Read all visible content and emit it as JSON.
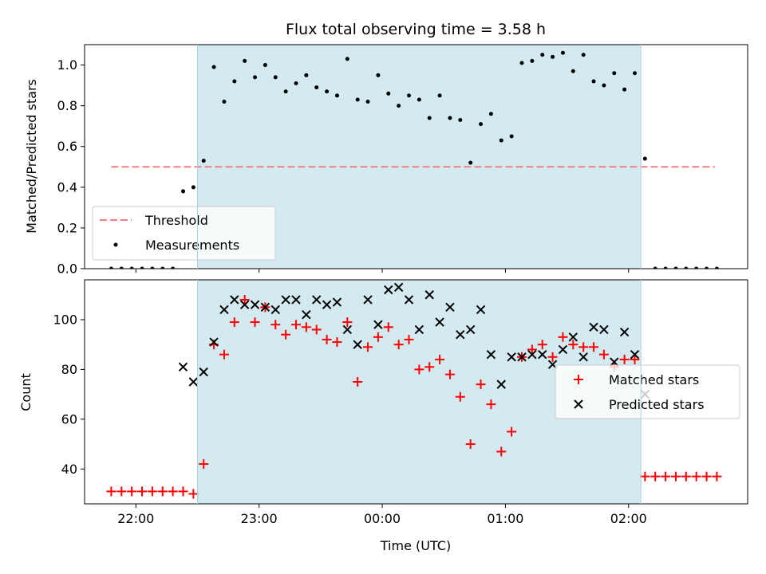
{
  "chart_data": [
    {
      "type": "scatter",
      "title": "Flux total observing time = 3.58 h",
      "xlabel": "",
      "ylabel": "Matched/Predicted stars",
      "ylim": [
        0,
        1.1
      ],
      "xlim": [
        "21:35",
        "02:58"
      ],
      "yticks": [
        "0.0",
        "0.2",
        "0.4",
        "0.6",
        "0.8",
        "1.0"
      ],
      "shaded_interval": [
        "22:30",
        "02:06"
      ],
      "shade_color": "#d3eaf1",
      "threshold": {
        "name": "Threshold",
        "value": 0.5,
        "x_range": [
          "21:48",
          "02:42"
        ],
        "color": "#f08080"
      },
      "series": [
        {
          "name": "Measurements",
          "color": "#000000",
          "x": [
            "21:48",
            "21:53",
            "21:58",
            "22:03",
            "22:08",
            "22:13",
            "22:18",
            "22:23",
            "22:28",
            "22:33",
            "22:38",
            "22:43",
            "22:48",
            "22:53",
            "22:58",
            "23:03",
            "23:08",
            "23:13",
            "23:18",
            "23:23",
            "23:28",
            "23:33",
            "23:38",
            "23:43",
            "23:48",
            "23:53",
            "23:58",
            "00:03",
            "00:08",
            "00:13",
            "00:18",
            "00:23",
            "00:28",
            "00:33",
            "00:38",
            "00:43",
            "00:48",
            "00:53",
            "00:58",
            "01:03",
            "01:08",
            "01:13",
            "01:18",
            "01:23",
            "01:28",
            "01:33",
            "01:38",
            "01:43",
            "01:48",
            "01:53",
            "01:58",
            "02:03",
            "02:08",
            "02:13",
            "02:18",
            "02:23",
            "02:28",
            "02:33",
            "02:38",
            "02:43"
          ],
          "y": [
            0,
            0,
            0,
            0,
            0,
            0,
            0,
            0.38,
            0.4,
            0.53,
            0.99,
            0.82,
            0.92,
            1.02,
            0.94,
            1.0,
            0.94,
            0.87,
            0.91,
            0.95,
            0.89,
            0.87,
            0.85,
            1.03,
            0.83,
            0.82,
            0.95,
            0.86,
            0.8,
            0.85,
            0.83,
            0.74,
            0.85,
            0.74,
            0.73,
            0.52,
            0.71,
            0.76,
            0.63,
            0.65,
            1.01,
            1.02,
            1.05,
            1.04,
            1.06,
            0.97,
            1.05,
            0.92,
            0.9,
            0.96,
            0.88,
            0.96,
            0.54,
            0,
            0,
            0,
            0,
            0,
            0,
            0
          ]
        }
      ],
      "legend": {
        "placement": "lower-left",
        "entries": [
          "Threshold",
          "Measurements"
        ]
      }
    },
    {
      "type": "scatter",
      "title": "",
      "xlabel": "Time (UTC)",
      "ylabel": "Count",
      "ylim": [
        26,
        116
      ],
      "xlim": [
        "21:35",
        "02:58"
      ],
      "yticks": [
        "40",
        "60",
        "80",
        "100"
      ],
      "xticks": [
        "22:00",
        "23:00",
        "00:00",
        "01:00",
        "02:00"
      ],
      "shaded_interval": [
        "22:30",
        "02:06"
      ],
      "shade_color": "#d3eaf1",
      "series": [
        {
          "name": "Matched stars",
          "marker": "plus",
          "color": "#ff0000",
          "x": [
            "21:48",
            "21:53",
            "21:58",
            "22:03",
            "22:08",
            "22:13",
            "22:18",
            "22:23",
            "22:28",
            "22:33",
            "22:38",
            "22:43",
            "22:48",
            "22:53",
            "22:58",
            "23:03",
            "23:08",
            "23:13",
            "23:18",
            "23:23",
            "23:28",
            "23:33",
            "23:38",
            "23:43",
            "23:48",
            "23:53",
            "23:58",
            "00:03",
            "00:08",
            "00:13",
            "00:18",
            "00:23",
            "00:28",
            "00:33",
            "00:38",
            "00:43",
            "00:48",
            "00:53",
            "00:58",
            "01:03",
            "01:08",
            "01:13",
            "01:18",
            "01:23",
            "01:28",
            "01:33",
            "01:38",
            "01:43",
            "01:48",
            "01:53",
            "01:58",
            "02:03",
            "02:08",
            "02:13",
            "02:18",
            "02:23",
            "02:28",
            "02:33",
            "02:38",
            "02:43"
          ],
          "y": [
            31,
            31,
            31,
            31,
            31,
            31,
            31,
            31,
            30,
            42,
            90,
            86,
            99,
            108,
            99,
            105,
            98,
            94,
            98,
            97,
            96,
            92,
            91,
            99,
            75,
            89,
            93,
            97,
            90,
            92,
            80,
            81,
            84,
            78,
            69,
            50,
            74,
            66,
            47,
            55,
            85,
            88,
            90,
            85,
            93,
            90,
            89,
            89,
            86,
            81,
            84,
            84,
            37,
            37,
            37,
            37,
            37,
            37,
            37,
            37
          ]
        },
        {
          "name": "Predicted stars",
          "marker": "x",
          "color": "#000000",
          "x": [
            "22:23",
            "22:28",
            "22:33",
            "22:38",
            "22:43",
            "22:48",
            "22:53",
            "22:58",
            "23:03",
            "23:08",
            "23:13",
            "23:18",
            "23:23",
            "23:28",
            "23:33",
            "23:38",
            "23:43",
            "23:48",
            "23:53",
            "23:58",
            "00:03",
            "00:08",
            "00:13",
            "00:18",
            "00:23",
            "00:28",
            "00:33",
            "00:38",
            "00:43",
            "00:48",
            "00:53",
            "00:58",
            "01:03",
            "01:08",
            "01:13",
            "01:18",
            "01:23",
            "01:28",
            "01:33",
            "01:38",
            "01:43",
            "01:48",
            "01:53",
            "01:58",
            "02:03",
            "02:08"
          ],
          "y": [
            81,
            75,
            79,
            91,
            104,
            108,
            106,
            106,
            105,
            104,
            108,
            108,
            102,
            108,
            106,
            107,
            96,
            90,
            108,
            98,
            112,
            113,
            108,
            96,
            110,
            99,
            105,
            94,
            96,
            104,
            86,
            74,
            85,
            85,
            86,
            86,
            82,
            88,
            93,
            85,
            97,
            96,
            83,
            95,
            86,
            70
          ]
        }
      ],
      "legend": {
        "placement": "center-right",
        "entries": [
          "Matched stars",
          "Predicted stars"
        ]
      }
    }
  ]
}
